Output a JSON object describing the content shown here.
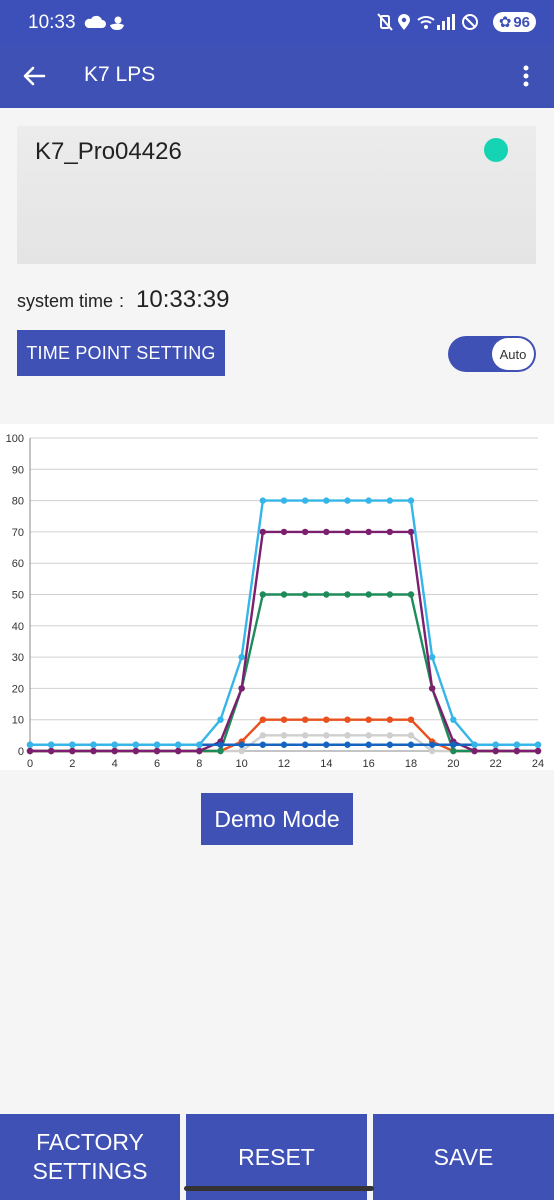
{
  "status_bar": {
    "time": "10:33",
    "battery": "96",
    "icons_left": [
      "cloud-icon",
      "duck-icon"
    ],
    "icons_right": [
      "mute-vibrate-icon",
      "location-icon",
      "wifi-icon",
      "signal-icon",
      "dnd-icon",
      "battery-icon"
    ]
  },
  "app_bar": {
    "title": "K7 LPS",
    "back_icon": "back-arrow-icon",
    "menu_icon": "more-vert-icon"
  },
  "device": {
    "name": "K7_Pro04426",
    "status_color": "#14d4b4"
  },
  "system_time": {
    "label": "system time",
    "colon": ":",
    "value": "10:33:39"
  },
  "time_point_button": "TIME POINT SETTING",
  "toggle": {
    "label": "Auto",
    "state": "on"
  },
  "chart_data": {
    "type": "line",
    "xlim": [
      0,
      24
    ],
    "ylim": [
      0,
      100
    ],
    "x_ticks": [
      0,
      2,
      4,
      6,
      8,
      10,
      12,
      14,
      16,
      18,
      20,
      22,
      24
    ],
    "y_ticks": [
      0,
      10,
      20,
      30,
      40,
      50,
      60,
      70,
      80,
      90,
      100
    ],
    "grid": "horizontal",
    "x": [
      0,
      1,
      2,
      3,
      4,
      5,
      6,
      7,
      8,
      9,
      10,
      11,
      12,
      13,
      14,
      15,
      16,
      17,
      18,
      19,
      20,
      21,
      22,
      23,
      24
    ],
    "series": [
      {
        "color": "#cfcfcf",
        "values": [
          0,
          0,
          0,
          0,
          0,
          0,
          0,
          0,
          0,
          0,
          0,
          5,
          5,
          5,
          5,
          5,
          5,
          5,
          5,
          0,
          0,
          0,
          0,
          0,
          0
        ]
      },
      {
        "color": "#e8501e",
        "values": [
          0,
          0,
          0,
          0,
          0,
          0,
          0,
          0,
          0,
          0,
          3,
          10,
          10,
          10,
          10,
          10,
          10,
          10,
          10,
          3,
          0,
          0,
          0,
          0,
          0
        ]
      },
      {
        "color": "#1e8c5a",
        "values": [
          0,
          0,
          0,
          0,
          0,
          0,
          0,
          0,
          0,
          0,
          20,
          50,
          50,
          50,
          50,
          50,
          50,
          50,
          50,
          20,
          0,
          0,
          0,
          0,
          0
        ]
      },
      {
        "color": "#7b1f6e",
        "values": [
          0,
          0,
          0,
          0,
          0,
          0,
          0,
          0,
          0,
          3,
          20,
          70,
          70,
          70,
          70,
          70,
          70,
          70,
          70,
          20,
          3,
          0,
          0,
          0,
          0
        ]
      },
      {
        "color": "#1565c0",
        "values": [
          2,
          2,
          2,
          2,
          2,
          2,
          2,
          2,
          2,
          2,
          2,
          2,
          2,
          2,
          2,
          2,
          2,
          2,
          2,
          2,
          2,
          2,
          2,
          2,
          2
        ]
      },
      {
        "color": "#36b6e8",
        "values": [
          2,
          2,
          2,
          2,
          2,
          2,
          2,
          2,
          2,
          10,
          30,
          80,
          80,
          80,
          80,
          80,
          80,
          80,
          80,
          30,
          10,
          2,
          2,
          2,
          2
        ]
      }
    ]
  },
  "demo_button": "Demo Mode",
  "bottom_bar": {
    "factory_line1": "FACTORY",
    "factory_line2": "SETTINGS",
    "reset": "RESET",
    "save": "SAVE"
  }
}
